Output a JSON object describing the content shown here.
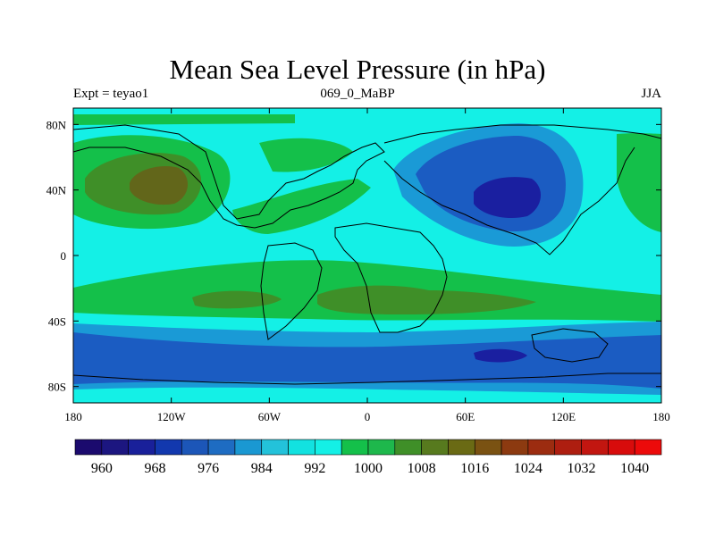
{
  "title": "Mean Sea Level Pressure (in hPa)",
  "subtitle_left": "Expt = teyao1",
  "subtitle_center": "069_0_MaBP",
  "subtitle_right": "JJA",
  "lat_labels": [
    "80N",
    "40N",
    "0",
    "40S",
    "80S"
  ],
  "lon_labels": [
    "180",
    "120W",
    "60W",
    "0",
    "60E",
    "120E",
    "180"
  ],
  "colorbar": {
    "tick_labels": [
      "960",
      "968",
      "976",
      "984",
      "992",
      "1000",
      "1008",
      "1016",
      "1024",
      "1032",
      "1040"
    ],
    "colors": [
      "#1b0a6e",
      "#1c1680",
      "#19209a",
      "#1238ae",
      "#1c56b8",
      "#1e6cc2",
      "#1a98d2",
      "#23c2da",
      "#12e2e0",
      "#14f0e6",
      "#14c04a",
      "#1eb84c",
      "#3f8f28",
      "#577a1e",
      "#6a6a14",
      "#7a5212",
      "#8c3a10",
      "#9c2c10",
      "#ae1e10",
      "#c21610",
      "#d80c0c",
      "#ec0a0a"
    ]
  },
  "pressure_fill_colors": {
    "low_deep": "#1a1fa0",
    "low": "#1b5cc2",
    "mid_low": "#1a9ad6",
    "normal": "#14f0e6",
    "high": "#14c04a",
    "higher": "#3f8f28",
    "highest": "#62661a"
  }
}
